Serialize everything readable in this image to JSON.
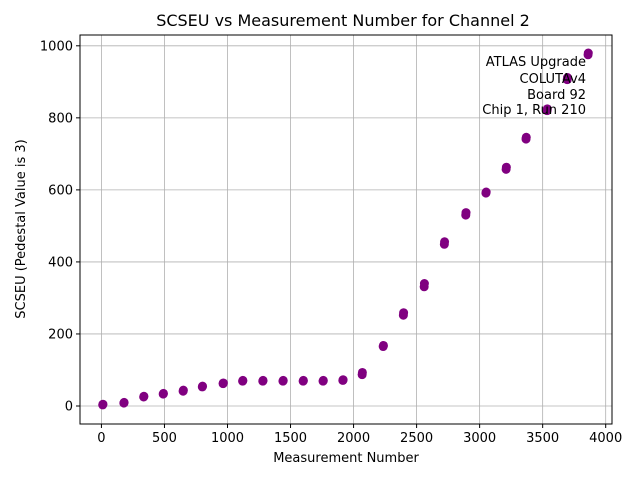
{
  "chart_data": {
    "type": "scatter",
    "title": "SCSEU vs Measurement Number for Channel 2",
    "xlabel": "Measurement Number",
    "ylabel": "SCSEU (Pedestal Value is 3)",
    "xlim": [
      -170,
      4050
    ],
    "ylim": [
      -50,
      1030
    ],
    "xticks": [
      0,
      500,
      1000,
      1500,
      2000,
      2500,
      3000,
      3500,
      4000
    ],
    "yticks": [
      0,
      200,
      400,
      600,
      800,
      1000
    ],
    "grid": true,
    "marker_color": "#800080",
    "annotation": [
      "ATLAS Upgrade",
      "COLUTAv4",
      "Board 92",
      "Chip 1, Run 210"
    ],
    "points": [
      {
        "x": 10,
        "y": 3
      },
      {
        "x": 12,
        "y": 5
      },
      {
        "x": 178,
        "y": 8
      },
      {
        "x": 180,
        "y": 10
      },
      {
        "x": 335,
        "y": 25
      },
      {
        "x": 337,
        "y": 27
      },
      {
        "x": 490,
        "y": 33
      },
      {
        "x": 492,
        "y": 35
      },
      {
        "x": 648,
        "y": 41
      },
      {
        "x": 650,
        "y": 44
      },
      {
        "x": 800,
        "y": 53
      },
      {
        "x": 802,
        "y": 55
      },
      {
        "x": 965,
        "y": 62
      },
      {
        "x": 967,
        "y": 64
      },
      {
        "x": 1120,
        "y": 69
      },
      {
        "x": 1122,
        "y": 71
      },
      {
        "x": 1280,
        "y": 69
      },
      {
        "x": 1282,
        "y": 71
      },
      {
        "x": 1440,
        "y": 69
      },
      {
        "x": 1442,
        "y": 71
      },
      {
        "x": 1600,
        "y": 69
      },
      {
        "x": 1602,
        "y": 71
      },
      {
        "x": 1758,
        "y": 69
      },
      {
        "x": 1760,
        "y": 71
      },
      {
        "x": 1915,
        "y": 71
      },
      {
        "x": 1917,
        "y": 73
      },
      {
        "x": 2068,
        "y": 87
      },
      {
        "x": 2070,
        "y": 93
      },
      {
        "x": 2235,
        "y": 165
      },
      {
        "x": 2237,
        "y": 168
      },
      {
        "x": 2395,
        "y": 252
      },
      {
        "x": 2397,
        "y": 259
      },
      {
        "x": 2560,
        "y": 331
      },
      {
        "x": 2562,
        "y": 340
      },
      {
        "x": 2720,
        "y": 449
      },
      {
        "x": 2722,
        "y": 456
      },
      {
        "x": 2890,
        "y": 530
      },
      {
        "x": 2892,
        "y": 537
      },
      {
        "x": 3050,
        "y": 591
      },
      {
        "x": 3052,
        "y": 594
      },
      {
        "x": 3210,
        "y": 657
      },
      {
        "x": 3212,
        "y": 663
      },
      {
        "x": 3368,
        "y": 741
      },
      {
        "x": 3370,
        "y": 746
      },
      {
        "x": 3535,
        "y": 820
      },
      {
        "x": 3537,
        "y": 825
      },
      {
        "x": 3695,
        "y": 906
      },
      {
        "x": 3697,
        "y": 912
      },
      {
        "x": 3860,
        "y": 975
      },
      {
        "x": 3862,
        "y": 980
      }
    ]
  }
}
